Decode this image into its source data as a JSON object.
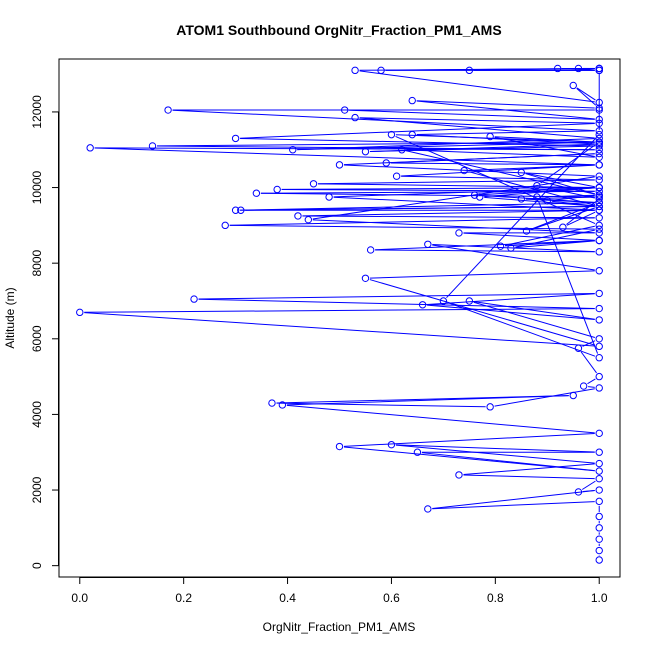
{
  "chart_data": {
    "type": "line",
    "title": "ATOM1 Southbound OrgNitr_Fraction_PM1_AMS",
    "xlabel": "OrgNitr_Fraction_PM1_AMS",
    "ylabel": "Altitude (m)",
    "xlim": [
      -0.04,
      1.04
    ],
    "ylim": [
      -300,
      13400
    ],
    "x_ticks": [
      0.0,
      0.2,
      0.4,
      0.6,
      0.8,
      1.0
    ],
    "x_tick_labels": [
      "0.0",
      "0.2",
      "0.4",
      "0.6",
      "0.8",
      "1.0"
    ],
    "y_ticks": [
      0,
      2000,
      4000,
      6000,
      8000,
      10000,
      12000
    ],
    "y_tick_labels": [
      "0",
      "2000",
      "4000",
      "6000",
      "8000",
      "10000",
      "12000"
    ],
    "grid": false,
    "marker": "open-circle",
    "color": "#0000ff",
    "series": [
      {
        "x": [
          1.0,
          1.0,
          1.0,
          1.0,
          1.0,
          1.0,
          0.67,
          1.0,
          0.96,
          1.0,
          0.73,
          1.0,
          0.6,
          1.0,
          0.65,
          1.0,
          0.5,
          1.0,
          0.39,
          0.95,
          0.37,
          0.79,
          1.0,
          0.97,
          1.0,
          0.96,
          1.0,
          0.75,
          1.0,
          0.66,
          1.0,
          0.22,
          1.0,
          0.0,
          1.0,
          0.55,
          1.0,
          0.67,
          1.0,
          0.56,
          1.0,
          0.83,
          1.0,
          0.28,
          1.0,
          0.42,
          1.0,
          0.31,
          1.0,
          0.3,
          1.0,
          0.85,
          1.0,
          0.34,
          1.0,
          0.38,
          1.0,
          0.45,
          1.0,
          0.61,
          1.0,
          0.02,
          1.0,
          0.14,
          1.0,
          0.41,
          1.0,
          0.53,
          1.0,
          0.3,
          1.0,
          0.55,
          1.0,
          0.64,
          1.0,
          0.17,
          1.0,
          0.51,
          1.0,
          0.64,
          1.0,
          0.95,
          1.0,
          0.53,
          1.0,
          0.58,
          1.0,
          0.75,
          1.0,
          0.92,
          1.0,
          0.96,
          1.0,
          1.0,
          0.7,
          1.0,
          0.88,
          1.0,
          0.85,
          1.0,
          0.77,
          1.0,
          0.74,
          1.0,
          0.59,
          1.0,
          0.5,
          1.0,
          0.44,
          1.0,
          0.73,
          1.0,
          0.81,
          1.0,
          0.6,
          1.0,
          0.88,
          1.0,
          0.93,
          1.0,
          0.48,
          1.0,
          0.76,
          1.0,
          0.86,
          1.0,
          0.9,
          1.0,
          0.62,
          1.0,
          0.79,
          1.0
        ],
        "y": [
          150,
          400,
          700,
          1000,
          1300,
          1700,
          1500,
          2000,
          1950,
          2300,
          2400,
          2700,
          3200,
          3000,
          3000,
          2500,
          3150,
          3500,
          4250,
          4500,
          4300,
          4200,
          4700,
          4750,
          5000,
          5750,
          6000,
          7000,
          6500,
          6900,
          7200,
          7050,
          6800,
          6700,
          5800,
          7600,
          7800,
          8500,
          8300,
          8350,
          8600,
          8400,
          8900,
          9000,
          9200,
          9250,
          9400,
          9400,
          9500,
          9400,
          9600,
          9700,
          9750,
          9850,
          9900,
          9950,
          10000,
          10100,
          10200,
          10300,
          10600,
          11050,
          11000,
          11100,
          11200,
          11000,
          11300,
          11850,
          11700,
          11300,
          11100,
          10950,
          11150,
          11400,
          11500,
          12050,
          12050,
          12050,
          11800,
          12300,
          12100,
          12700,
          12250,
          13100,
          13150,
          13100,
          13100,
          13100,
          13150,
          13150,
          13100,
          13150,
          13150,
          11400,
          7000,
          5500,
          9750,
          9800,
          10400,
          10000,
          9750,
          9500,
          10450,
          10600,
          10650,
          10900,
          10600,
          10300,
          9150,
          8800,
          8800,
          8600,
          8450,
          9000,
          11400,
          11200,
          10050,
          9700,
          8950,
          9400,
          9750,
          10000,
          9800,
          9600,
          8850,
          9500,
          9650,
          9800,
          11000,
          10800,
          11350,
          11200
        ]
      }
    ]
  }
}
